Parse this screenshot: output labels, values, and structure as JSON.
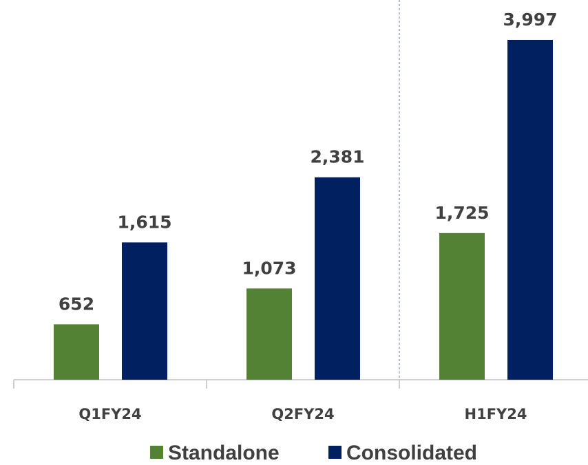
{
  "chart_data": {
    "type": "bar",
    "categories": [
      "Q1FY24",
      "Q2FY24",
      "H1FY24"
    ],
    "series": [
      {
        "name": "Standalone",
        "color": "#548235",
        "values": [
          652,
          1073,
          1725
        ],
        "value_labels": [
          "652",
          "1,073",
          "1,725"
        ]
      },
      {
        "name": "Consolidated",
        "color": "#002060",
        "values": [
          1615,
          2381,
          3997
        ],
        "value_labels": [
          "1,615",
          "2,381",
          "3,997"
        ]
      }
    ],
    "legend": "bottom"
  }
}
